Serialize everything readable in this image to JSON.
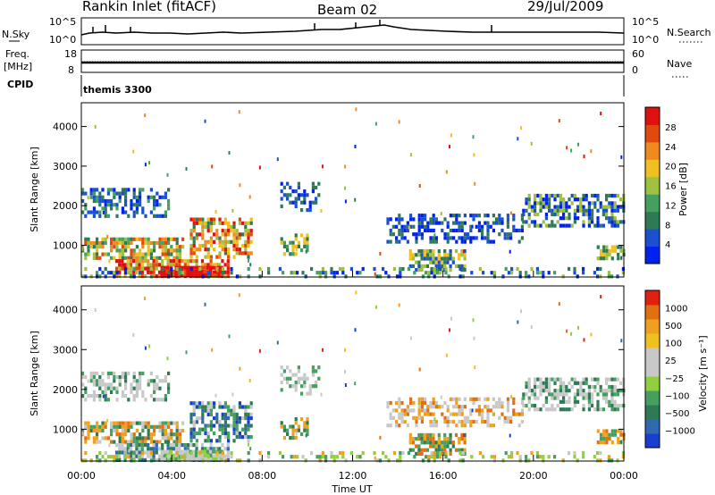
{
  "header": {
    "station": "Rankin Inlet (fitACF)",
    "beam": "Beam 02",
    "date": "29/Jul/2009"
  },
  "noise_panel": {
    "left_label": "N.Sky",
    "left_ticks": [
      "10^5",
      "10^0"
    ],
    "right_label": "N.Search",
    "right_ticks": [
      "10^5",
      "10^0"
    ]
  },
  "freq_panel": {
    "left_label_1": "Freq.",
    "left_label_2": "[MHz]",
    "left_ticks": [
      "18",
      "8"
    ],
    "right_label": "Nave",
    "right_ticks": [
      "60",
      "0"
    ],
    "cpid_label": "CPID"
  },
  "cpid_panel": {
    "text": "themis 3300"
  },
  "chart_data": [
    {
      "type": "heatmap",
      "name": "power",
      "ylabel": "Slant Range [km]",
      "yticks": [
        "4000",
        "3000",
        "2000",
        "1000"
      ],
      "ylim": [
        200,
        4600
      ],
      "xlim": [
        0,
        24
      ],
      "colorbar": {
        "label": "Power [dB]",
        "ticks": [
          "28",
          "24",
          "20",
          "16",
          "12",
          "8",
          "4"
        ],
        "colors": [
          "#0022ee",
          "#1a4fcf",
          "#2f7a55",
          "#45a060",
          "#a0c040",
          "#f0c020",
          "#f08a20",
          "#e04a10",
          "#e01010"
        ]
      }
    },
    {
      "type": "heatmap",
      "name": "velocity",
      "ylabel": "Slant Range [km]",
      "yticks": [
        "4000",
        "3000",
        "2000",
        "1000"
      ],
      "ylim": [
        200,
        4600
      ],
      "xlim": [
        0,
        24
      ],
      "xticks": [
        "00:00",
        "04:00",
        "08:00",
        "12:00",
        "16:00",
        "20:00",
        "00:00"
      ],
      "xlabel": "Time UT",
      "colorbar": {
        "label": "Velocity [m s⁻¹]",
        "ticks": [
          "1000",
          "500",
          "100",
          "25",
          "−25",
          "−100",
          "−500",
          "−1000"
        ],
        "colors": [
          "#1a3fd0",
          "#2f6ab0",
          "#2f7a55",
          "#45a060",
          "#90d040",
          "#c8c8c8",
          "#c8c8c8",
          "#f0c020",
          "#f0a020",
          "#e07010",
          "#e02010"
        ]
      }
    }
  ]
}
